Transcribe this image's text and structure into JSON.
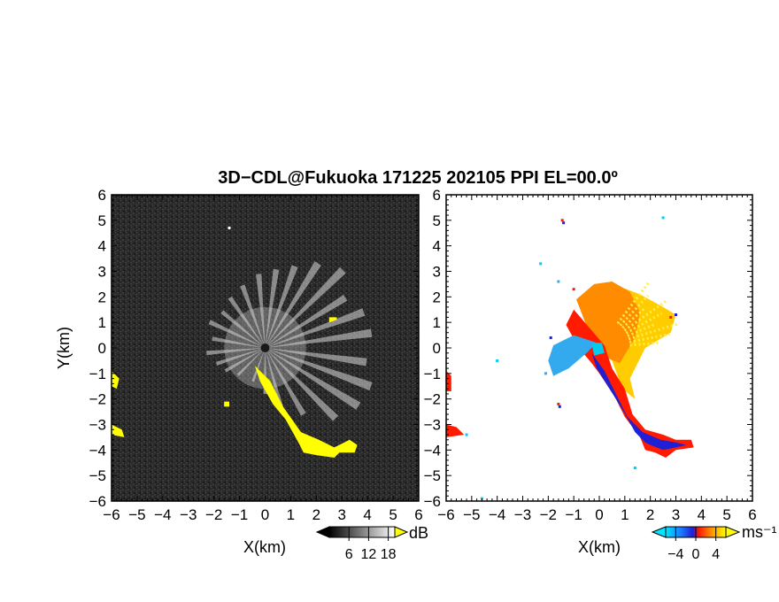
{
  "chart_data": {
    "type": "heatmap",
    "title": "3D−CDL@Fukuoka 171225 202105 PPI EL=00.0º",
    "panels": [
      {
        "name": "left",
        "quantity": "dB",
        "xlabel": "X(km)",
        "ylabel": "Y(km)",
        "xlim": [
          -6,
          6
        ],
        "ylim": [
          -6,
          6
        ],
        "background": "#2b2b2b",
        "colorbar": {
          "unit": "dB",
          "ticks": [
            6,
            12,
            18
          ],
          "tick_labels": [
            "6",
            "12",
            "18"
          ],
          "range": [
            0,
            20
          ]
        },
        "highlight_color": "#ffff00"
      },
      {
        "name": "right",
        "quantity": "ms⁻¹",
        "xlabel": "X(km)",
        "ylabel": "",
        "xlim": [
          -6,
          6
        ],
        "ylim": [
          -6,
          6
        ],
        "background": "#ffffff",
        "colorbar": {
          "unit": "ms⁻¹",
          "ticks": [
            -4,
            0,
            4
          ],
          "tick_labels": [
            "−4",
            "0",
            "4"
          ],
          "range": [
            -6,
            6
          ]
        }
      }
    ],
    "x_ticks": [
      -6,
      -5,
      -4,
      -3,
      -2,
      -1,
      0,
      1,
      2,
      3,
      4,
      5,
      6
    ],
    "y_ticks": [
      -6,
      -5,
      -4,
      -3,
      -2,
      -1,
      0,
      1,
      2,
      3,
      4,
      5,
      6
    ],
    "x_tick_labels": [
      "−6",
      "−5",
      "−4",
      "−3",
      "−2",
      "−1",
      "0",
      "1",
      "2",
      "3",
      "4",
      "5",
      "6"
    ],
    "y_tick_labels": [
      "−6",
      "−5",
      "−4",
      "−3",
      "−2",
      "−1",
      "0",
      "1",
      "2",
      "3",
      "4",
      "5",
      "6"
    ],
    "colors": {
      "yellow": "#ffff00",
      "red": "#ff1a00",
      "blue": "#1f1fd6",
      "orange": "#ff8c00",
      "gold": "#ffcc00",
      "light_yellow": "#ffee44",
      "sky": "#33aaee",
      "cyan": "#00ccee",
      "dark_bg": "#2b2b2b"
    },
    "regions": {
      "yellow_echo": [
        [
          -0.4,
          -0.7
        ],
        [
          0.2,
          -1.3
        ],
        [
          0.7,
          -2.3
        ],
        [
          1.4,
          -3.3
        ],
        [
          2.1,
          -3.6
        ],
        [
          2.7,
          -3.9
        ],
        [
          3.3,
          -3.6
        ],
        [
          3.6,
          -3.8
        ],
        [
          3.5,
          -4.1
        ],
        [
          2.9,
          -4.1
        ],
        [
          2.7,
          -4.3
        ],
        [
          2.0,
          -4.2
        ],
        [
          1.5,
          -4.1
        ],
        [
          1.3,
          -3.7
        ],
        [
          0.8,
          -2.8
        ],
        [
          0.3,
          -2.2
        ],
        [
          -0.2,
          -1.3
        ]
      ],
      "yellow_left_edge": [
        [
          -6.0,
          -0.9
        ],
        [
          -5.7,
          -1.2
        ],
        [
          -5.8,
          -1.6
        ],
        [
          -6.0,
          -1.5
        ]
      ],
      "yellow_left_low": [
        [
          -6.0,
          -3.0
        ],
        [
          -5.6,
          -3.2
        ],
        [
          -5.5,
          -3.5
        ],
        [
          -6.0,
          -3.4
        ]
      ],
      "yellow_small": [
        [
          2.5,
          1.2
        ],
        [
          2.8,
          1.2
        ],
        [
          2.8,
          1.1
        ],
        [
          2.5,
          1.0
        ]
      ],
      "yellow_tiny": [
        [
          -1.6,
          -2.1
        ],
        [
          -1.4,
          -2.1
        ],
        [
          -1.4,
          -2.3
        ],
        [
          -1.6,
          -2.3
        ]
      ],
      "vel_red_outer": [
        [
          -1.0,
          1.5
        ],
        [
          -0.4,
          0.8
        ],
        [
          0.2,
          0.1
        ],
        [
          0.5,
          -0.8
        ],
        [
          1.0,
          -1.6
        ],
        [
          1.3,
          -2.6
        ],
        [
          1.8,
          -3.2
        ],
        [
          2.5,
          -3.4
        ],
        [
          3.0,
          -3.6
        ],
        [
          3.6,
          -3.6
        ],
        [
          3.7,
          -3.9
        ],
        [
          3.0,
          -4.0
        ],
        [
          2.6,
          -4.3
        ],
        [
          2.2,
          -4.1
        ],
        [
          1.8,
          -4.0
        ],
        [
          1.6,
          -3.5
        ],
        [
          1.0,
          -2.7
        ],
        [
          0.6,
          -1.9
        ],
        [
          0.0,
          -1.0
        ],
        [
          -0.3,
          -0.6
        ],
        [
          -0.8,
          0.0
        ],
        [
          -1.3,
          0.9
        ]
      ],
      "vel_blue_core": [
        [
          -0.3,
          -0.2
        ],
        [
          0.2,
          -0.9
        ],
        [
          0.6,
          -1.7
        ],
        [
          1.1,
          -2.7
        ],
        [
          1.7,
          -3.3
        ],
        [
          2.4,
          -3.6
        ],
        [
          3.0,
          -3.7
        ],
        [
          3.4,
          -3.8
        ],
        [
          3.0,
          -3.9
        ],
        [
          2.5,
          -4.0
        ],
        [
          2.0,
          -3.8
        ],
        [
          1.8,
          -3.7
        ],
        [
          1.4,
          -3.3
        ],
        [
          0.9,
          -2.4
        ],
        [
          0.4,
          -1.6
        ],
        [
          -0.1,
          -0.8
        ]
      ],
      "vel_orange": [
        [
          -0.2,
          0.1
        ],
        [
          -0.9,
          1.9
        ],
        [
          -0.2,
          2.5
        ],
        [
          0.5,
          2.6
        ],
        [
          1.2,
          2.2
        ],
        [
          1.6,
          1.4
        ],
        [
          1.4,
          0.4
        ],
        [
          0.8,
          -0.6
        ],
        [
          0.3,
          -0.4
        ]
      ],
      "vel_gold": [
        [
          0.2,
          0.2
        ],
        [
          0.8,
          2.4
        ],
        [
          1.6,
          2.1
        ],
        [
          2.5,
          1.6
        ],
        [
          3.0,
          1.3
        ],
        [
          2.8,
          0.6
        ],
        [
          1.8,
          0.0
        ],
        [
          1.2,
          -1.2
        ],
        [
          1.4,
          -2.0
        ],
        [
          0.9,
          -1.6
        ],
        [
          0.5,
          -0.5
        ]
      ],
      "vel_blue_west": [
        [
          -0.1,
          0.2
        ],
        [
          -1.0,
          0.5
        ],
        [
          -1.8,
          0.1
        ],
        [
          -2.0,
          -0.5
        ],
        [
          -1.8,
          -1.1
        ],
        [
          -1.2,
          -0.8
        ],
        [
          -0.5,
          -0.2
        ]
      ],
      "vel_cyan_center": [
        [
          -0.3,
          0.2
        ],
        [
          0.1,
          0.2
        ],
        [
          0.2,
          -0.2
        ],
        [
          -0.2,
          -0.3
        ]
      ],
      "vel_left_red_top": [
        [
          -6.0,
          -0.9
        ],
        [
          -5.8,
          -1.1
        ],
        [
          -5.8,
          -1.7
        ],
        [
          -6.0,
          -1.7
        ]
      ],
      "vel_left_red_low": [
        [
          -6.0,
          -3.0
        ],
        [
          -5.6,
          -3.1
        ],
        [
          -5.3,
          -3.4
        ],
        [
          -6.0,
          -3.5
        ]
      ]
    },
    "rays": [
      {
        "angle": 20,
        "length": 4.1
      },
      {
        "angle": 32,
        "length": 3.7
      },
      {
        "angle": 45,
        "length": 4.3
      },
      {
        "angle": 58,
        "length": 3.9
      },
      {
        "angle": 70,
        "length": 3.4
      },
      {
        "angle": 82,
        "length": 3.1
      },
      {
        "angle": 95,
        "length": 2.9
      },
      {
        "angle": 110,
        "length": 2.6
      },
      {
        "angle": 125,
        "length": 2.4
      },
      {
        "angle": 140,
        "length": 2.2
      },
      {
        "angle": 155,
        "length": 2.4
      },
      {
        "angle": 170,
        "length": 2.1
      },
      {
        "angle": 185,
        "length": 2.3
      },
      {
        "angle": 198,
        "length": 2.0
      },
      {
        "angle": 210,
        "length": 1.8
      },
      {
        "angle": 225,
        "length": 1.5
      },
      {
        "angle": 250,
        "length": 1.4
      },
      {
        "angle": 270,
        "length": 1.8
      },
      {
        "angle": 285,
        "length": 2.4
      },
      {
        "angle": 300,
        "length": 3.0
      },
      {
        "angle": 315,
        "length": 3.9
      },
      {
        "angle": 328,
        "length": 4.3
      },
      {
        "angle": 340,
        "length": 4.4
      },
      {
        "angle": 352,
        "length": 4.0
      },
      {
        "angle": 8,
        "length": 4.2
      }
    ],
    "speckles": [
      {
        "x": -1.4,
        "y": 4.9,
        "c": "blue"
      },
      {
        "x": -1.45,
        "y": 5.0,
        "c": "red"
      },
      {
        "x": 2.5,
        "y": 5.1,
        "c": "cyan"
      },
      {
        "x": -2.3,
        "y": 3.3,
        "c": "cyan"
      },
      {
        "x": -4.0,
        "y": -0.5,
        "c": "cyan"
      },
      {
        "x": -5.2,
        "y": -3.4,
        "c": "cyan"
      },
      {
        "x": 1.4,
        "y": -4.7,
        "c": "cyan"
      },
      {
        "x": -4.6,
        "y": -5.9,
        "c": "cyan"
      },
      {
        "x": -1.6,
        "y": -2.2,
        "c": "red"
      },
      {
        "x": -1.55,
        "y": -2.3,
        "c": "blue"
      },
      {
        "x": 2.8,
        "y": 1.2,
        "c": "red"
      },
      {
        "x": 3.0,
        "y": 1.3,
        "c": "blue"
      },
      {
        "x": -2.1,
        "y": -1.0,
        "c": "sky"
      },
      {
        "x": -1.9,
        "y": 0.4,
        "c": "blue"
      },
      {
        "x": -1.0,
        "y": 2.3,
        "c": "red"
      },
      {
        "x": -1.6,
        "y": 2.6,
        "c": "sky"
      }
    ]
  }
}
